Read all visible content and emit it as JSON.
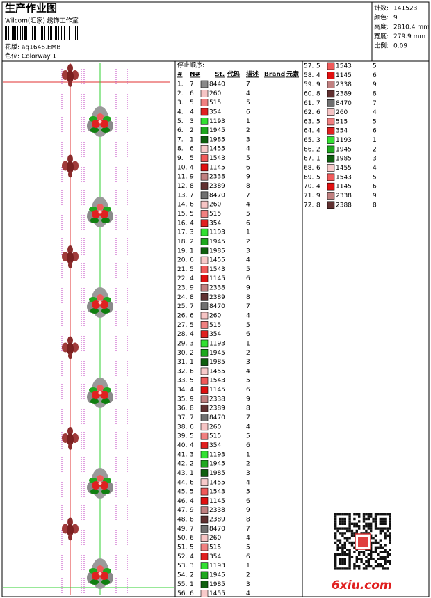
{
  "header": {
    "title": "生产作业图",
    "subtitle": "Wilcom(汇家) 绣饰工作室",
    "pattern": "花版: aq1646.EMB",
    "colorway": "色位: Colorway 1"
  },
  "stats": [
    [
      "针数:",
      "141523"
    ],
    [
      "颜色:",
      "9"
    ],
    [
      "高度:",
      "2810.4 mm"
    ],
    [
      "宽度:",
      "279.9 mm"
    ],
    [
      "比例:",
      "0.09"
    ]
  ],
  "list": {
    "heading": "停止顺序:",
    "columns": [
      "#",
      "N#",
      "St.",
      "代码",
      "描述",
      "Brand",
      "元素"
    ],
    "rows": [
      [
        "1.",
        "7",
        "8440",
        "7",
        "#8a8a8a"
      ],
      [
        "2.",
        "6",
        "260",
        "4",
        "#f6c4c4"
      ],
      [
        "3.",
        "5",
        "515",
        "5",
        "#f08080"
      ],
      [
        "4.",
        "4",
        "354",
        "6",
        "#e02020"
      ],
      [
        "5.",
        "3",
        "1193",
        "1",
        "#33e033"
      ],
      [
        "6.",
        "2",
        "1945",
        "2",
        "#1fa81f"
      ],
      [
        "7.",
        "1",
        "1985",
        "3",
        "#0f5f0f"
      ],
      [
        "8.",
        "6",
        "1455",
        "4",
        "#f8caca"
      ],
      [
        "9.",
        "5",
        "1543",
        "5",
        "#f05a5a"
      ],
      [
        "10.",
        "4",
        "1145",
        "6",
        "#e01010"
      ],
      [
        "11.",
        "9",
        "2338",
        "9",
        "#c08080"
      ],
      [
        "12.",
        "8",
        "2389",
        "8",
        "#603030"
      ],
      [
        "13.",
        "7",
        "8470",
        "7",
        "#707070"
      ],
      [
        "14.",
        "6",
        "260",
        "4",
        "#f6c4c4"
      ],
      [
        "15.",
        "5",
        "515",
        "5",
        "#f08080"
      ],
      [
        "16.",
        "4",
        "354",
        "6",
        "#e02020"
      ],
      [
        "17.",
        "3",
        "1193",
        "1",
        "#33e033"
      ],
      [
        "18.",
        "2",
        "1945",
        "2",
        "#1fa81f"
      ],
      [
        "19.",
        "1",
        "1985",
        "3",
        "#0f5f0f"
      ],
      [
        "20.",
        "6",
        "1455",
        "4",
        "#f8caca"
      ],
      [
        "21.",
        "5",
        "1543",
        "5",
        "#f05a5a"
      ],
      [
        "22.",
        "4",
        "1145",
        "6",
        "#e01010"
      ],
      [
        "23.",
        "9",
        "2338",
        "9",
        "#c08080"
      ],
      [
        "24.",
        "8",
        "2389",
        "8",
        "#603030"
      ],
      [
        "25.",
        "7",
        "8470",
        "7",
        "#707070"
      ],
      [
        "26.",
        "6",
        "260",
        "4",
        "#f6c4c4"
      ],
      [
        "27.",
        "5",
        "515",
        "5",
        "#f08080"
      ],
      [
        "28.",
        "4",
        "354",
        "6",
        "#e02020"
      ],
      [
        "29.",
        "3",
        "1193",
        "1",
        "#33e033"
      ],
      [
        "30.",
        "2",
        "1945",
        "2",
        "#1fa81f"
      ],
      [
        "31.",
        "1",
        "1985",
        "3",
        "#0f5f0f"
      ],
      [
        "32.",
        "6",
        "1455",
        "4",
        "#f8caca"
      ],
      [
        "33.",
        "5",
        "1543",
        "5",
        "#f05a5a"
      ],
      [
        "34.",
        "4",
        "1145",
        "6",
        "#e01010"
      ],
      [
        "35.",
        "9",
        "2338",
        "9",
        "#c08080"
      ],
      [
        "36.",
        "8",
        "2389",
        "8",
        "#603030"
      ],
      [
        "37.",
        "7",
        "8470",
        "7",
        "#707070"
      ],
      [
        "38.",
        "6",
        "260",
        "4",
        "#f6c4c4"
      ],
      [
        "39.",
        "5",
        "515",
        "5",
        "#f08080"
      ],
      [
        "40.",
        "4",
        "354",
        "6",
        "#e02020"
      ],
      [
        "41.",
        "3",
        "1193",
        "1",
        "#33e033"
      ],
      [
        "42.",
        "2",
        "1945",
        "2",
        "#1fa81f"
      ],
      [
        "43.",
        "1",
        "1985",
        "3",
        "#0f5f0f"
      ],
      [
        "44.",
        "6",
        "1455",
        "4",
        "#f8caca"
      ],
      [
        "45.",
        "5",
        "1543",
        "5",
        "#f05a5a"
      ],
      [
        "46.",
        "4",
        "1145",
        "6",
        "#e01010"
      ],
      [
        "47.",
        "9",
        "2338",
        "9",
        "#c08080"
      ],
      [
        "48.",
        "8",
        "2389",
        "8",
        "#603030"
      ],
      [
        "49.",
        "7",
        "8470",
        "7",
        "#707070"
      ],
      [
        "50.",
        "6",
        "260",
        "4",
        "#f6c4c4"
      ],
      [
        "51.",
        "5",
        "515",
        "5",
        "#f08080"
      ],
      [
        "52.",
        "4",
        "354",
        "6",
        "#e02020"
      ],
      [
        "53.",
        "3",
        "1193",
        "1",
        "#33e033"
      ],
      [
        "54.",
        "2",
        "1945",
        "2",
        "#1fa81f"
      ],
      [
        "55.",
        "1",
        "1985",
        "3",
        "#0f5f0f"
      ],
      [
        "56.",
        "6",
        "1455",
        "4",
        "#f8caca"
      ],
      [
        "57.",
        "5",
        "1543",
        "5",
        "#f05a5a"
      ],
      [
        "58.",
        "4",
        "1145",
        "6",
        "#e01010"
      ],
      [
        "59.",
        "9",
        "2338",
        "9",
        "#c08080"
      ],
      [
        "60.",
        "8",
        "2389",
        "8",
        "#603030"
      ],
      [
        "61.",
        "7",
        "8470",
        "7",
        "#707070"
      ],
      [
        "62.",
        "6",
        "260",
        "4",
        "#f6c4c4"
      ],
      [
        "63.",
        "5",
        "515",
        "5",
        "#f08080"
      ],
      [
        "64.",
        "4",
        "354",
        "6",
        "#e02020"
      ],
      [
        "65.",
        "3",
        "1193",
        "1",
        "#33e033"
      ],
      [
        "66.",
        "2",
        "1945",
        "2",
        "#1fa81f"
      ],
      [
        "67.",
        "1",
        "1985",
        "3",
        "#0f5f0f"
      ],
      [
        "68.",
        "6",
        "1455",
        "4",
        "#f8caca"
      ],
      [
        "69.",
        "5",
        "1543",
        "5",
        "#f05a5a"
      ],
      [
        "70.",
        "4",
        "1145",
        "6",
        "#e01010"
      ],
      [
        "71.",
        "9",
        "2338",
        "9",
        "#c08080"
      ],
      [
        "72.",
        "8",
        "2388",
        "8",
        "#603030"
      ]
    ]
  },
  "watermark": "6xiu.com"
}
